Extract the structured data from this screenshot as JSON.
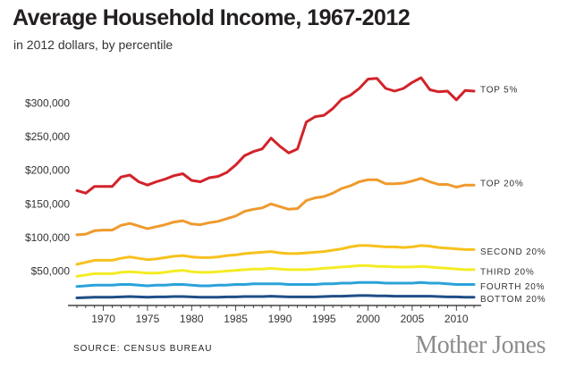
{
  "header": {
    "title": "Average Household Income, 1967-2012",
    "subtitle": "in 2012 dollars, by percentile"
  },
  "footer": {
    "source": "SOURCE: CENSUS BUREAU",
    "brand": "Mother Jones"
  },
  "chart_data": {
    "type": "line",
    "title": "Average Household Income, 1967-2012",
    "subtitle": "in 2012 dollars, by percentile",
    "xlabel": "",
    "ylabel": "",
    "xlim": [
      1967,
      2012
    ],
    "ylim": [
      0,
      350000
    ],
    "x_ticks": [
      1970,
      1975,
      1980,
      1985,
      1990,
      1995,
      2000,
      2005,
      2010
    ],
    "y_ticks": [
      50000,
      100000,
      150000,
      200000,
      250000,
      300000
    ],
    "y_tick_labels": [
      "$50,000",
      "$100,000",
      "$150,000",
      "$200,000",
      "$250,000",
      "$300,000"
    ],
    "grid": false,
    "legend": "direct labels at right end of each line",
    "x": [
      1967,
      1968,
      1969,
      1970,
      1971,
      1972,
      1973,
      1974,
      1975,
      1976,
      1977,
      1978,
      1979,
      1980,
      1981,
      1982,
      1983,
      1984,
      1985,
      1986,
      1987,
      1988,
      1989,
      1990,
      1991,
      1992,
      1993,
      1994,
      1995,
      1996,
      1997,
      1998,
      1999,
      2000,
      2001,
      2002,
      2003,
      2004,
      2005,
      2006,
      2007,
      2008,
      2009,
      2010,
      2011,
      2012
    ],
    "series": [
      {
        "name": "TOP 5%",
        "color": "#d2232a",
        "values": [
          170000,
          166000,
          176000,
          176000,
          176000,
          190000,
          193000,
          183000,
          178000,
          183000,
          187000,
          192000,
          195000,
          185000,
          183000,
          189000,
          191000,
          197000,
          208000,
          222000,
          228000,
          232000,
          248000,
          236000,
          226000,
          232000,
          272000,
          280000,
          282000,
          292000,
          306000,
          312000,
          322000,
          336000,
          337000,
          322000,
          318000,
          322000,
          331000,
          338000,
          320000,
          317000,
          318000,
          305000,
          319000,
          318000
        ]
      },
      {
        "name": "TOP 20%",
        "color": "#ef9a2d",
        "values": [
          104000,
          105000,
          110000,
          111000,
          111000,
          118000,
          121000,
          117000,
          113000,
          116000,
          119000,
          123000,
          125000,
          120000,
          119000,
          122000,
          124000,
          128000,
          132000,
          139000,
          142000,
          144000,
          150000,
          146000,
          142000,
          143000,
          155000,
          159000,
          161000,
          166000,
          173000,
          177000,
          183000,
          186000,
          186000,
          180000,
          180000,
          181000,
          184000,
          188000,
          183000,
          179000,
          179000,
          175000,
          178000,
          178000
        ]
      },
      {
        "name": "SECOND 20%",
        "color": "#f7c11e",
        "values": [
          60000,
          63000,
          66000,
          66000,
          66000,
          69000,
          71000,
          69000,
          67000,
          68000,
          70000,
          72000,
          73000,
          71000,
          70000,
          70000,
          71000,
          73000,
          74000,
          76000,
          77000,
          78000,
          79000,
          77000,
          76000,
          76000,
          77000,
          78000,
          79000,
          81000,
          83000,
          86000,
          88000,
          88000,
          87000,
          86000,
          86000,
          85000,
          86000,
          88000,
          87000,
          85000,
          84000,
          83000,
          82000,
          82000
        ]
      },
      {
        "name": "THIRD 20%",
        "color": "#f4ec24",
        "values": [
          42000,
          44000,
          46000,
          46000,
          46000,
          48000,
          49000,
          48000,
          47000,
          47000,
          48000,
          50000,
          51000,
          49000,
          48000,
          48000,
          49000,
          50000,
          51000,
          52000,
          53000,
          53000,
          54000,
          53000,
          52000,
          52000,
          52000,
          53000,
          54000,
          55000,
          56000,
          57000,
          58000,
          58000,
          57000,
          57000,
          56000,
          56000,
          56000,
          57000,
          56000,
          55000,
          54000,
          53000,
          52000,
          52000
        ]
      },
      {
        "name": "FOURTH 20%",
        "color": "#2ba2d9",
        "values": [
          27000,
          28000,
          29000,
          29000,
          29000,
          30000,
          30000,
          29000,
          28000,
          29000,
          29000,
          30000,
          30000,
          29000,
          28000,
          28000,
          29000,
          29000,
          30000,
          30000,
          31000,
          31000,
          31000,
          31000,
          30000,
          30000,
          30000,
          30000,
          31000,
          31000,
          32000,
          32000,
          33000,
          33000,
          33000,
          32000,
          32000,
          32000,
          32000,
          33000,
          32000,
          32000,
          31000,
          30000,
          30000,
          30000
        ]
      },
      {
        "name": "BOTTOM 20%",
        "color": "#1f4e87",
        "values": [
          10000,
          10500,
          11000,
          11000,
          11000,
          11500,
          12000,
          11500,
          11000,
          11500,
          11500,
          12000,
          12000,
          11500,
          11000,
          11000,
          11000,
          11500,
          11500,
          12000,
          12000,
          12000,
          12500,
          12000,
          11500,
          11500,
          11500,
          11500,
          12000,
          12500,
          12500,
          13000,
          13500,
          13500,
          13000,
          13000,
          12500,
          12500,
          12500,
          12500,
          12500,
          12000,
          11500,
          11500,
          11000,
          11000
        ]
      }
    ]
  }
}
